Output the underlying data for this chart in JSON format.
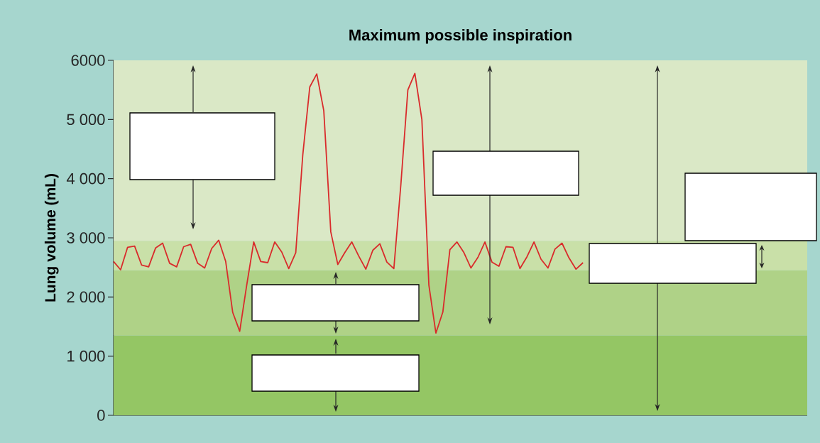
{
  "chart_data": {
    "type": "line",
    "title": "Maximum possible inspiration",
    "ylabel": "Lung volume (mL)",
    "categories": [
      null,
      null,
      null,
      null,
      null,
      null,
      null,
      null,
      null,
      null,
      null,
      null,
      null,
      null,
      null,
      null,
      null,
      null,
      null,
      null,
      null,
      null,
      null,
      null,
      null,
      null,
      null,
      null,
      null,
      null,
      null,
      null,
      null,
      null,
      null,
      null,
      null,
      null,
      null,
      null,
      null,
      null,
      null,
      null,
      null,
      null,
      null,
      null,
      null,
      null,
      null,
      null,
      null,
      null,
      null,
      null,
      null,
      null,
      null,
      null,
      null,
      null,
      null,
      null,
      null,
      null,
      null,
      null,
      null,
      null,
      null,
      null,
      null,
      null,
      null,
      null,
      null,
      null,
      null,
      null,
      null,
      null,
      null,
      null,
      null,
      null,
      null,
      null,
      null,
      null,
      null,
      null,
      null,
      null,
      null,
      null,
      null,
      null,
      null,
      null
    ],
    "series": [
      {
        "color": "#d92b2b",
        "values": [
          2600,
          2460,
          2840,
          2860,
          2540,
          2510,
          2830,
          2910,
          2570,
          2510,
          2850,
          2890,
          2570,
          2490,
          2820,
          2960,
          2600,
          1740,
          1420,
          2200,
          2930,
          2600,
          2580,
          2930,
          2760,
          2480,
          2750,
          4400,
          5550,
          5770,
          5150,
          3100,
          2550,
          2750,
          2930,
          2690,
          2470,
          2790,
          2900,
          2590,
          2480,
          3900,
          5500,
          5780,
          5000,
          2200,
          1390,
          1750,
          2800,
          2930,
          2750,
          2490,
          2670,
          2930,
          2590,
          2520,
          2850,
          2840,
          2480,
          2680,
          2930,
          2640,
          2490,
          2810,
          2910,
          2660,
          2470,
          2580,
          null,
          null,
          null,
          null,
          null,
          null,
          null,
          null,
          null,
          null,
          null,
          null,
          null,
          null,
          null,
          null,
          null,
          null,
          null,
          null,
          null,
          null,
          null,
          null,
          null,
          null,
          null,
          null,
          null,
          null,
          null,
          null
        ]
      }
    ],
    "ylim": [
      0,
      6000
    ],
    "yticks": [
      {
        "value": 0,
        "label": "0"
      },
      {
        "value": 1000,
        "label": "1 000"
      },
      {
        "value": 2000,
        "label": "2 000"
      },
      {
        "value": 3000,
        "label": "3 000"
      },
      {
        "value": 4000,
        "label": "4 000"
      },
      {
        "value": 5000,
        "label": "5 000"
      },
      {
        "value": 6000,
        "label": "6000"
      }
    ],
    "tick_labels": "y",
    "bands": [
      {
        "axis": "y",
        "from": 0,
        "to": 1350,
        "color": "#94c664"
      },
      {
        "axis": "y",
        "from": 1350,
        "to": 2450,
        "color": "#afd287"
      },
      {
        "axis": "y",
        "from": 2450,
        "to": 2950,
        "color": "#c9e0a8"
      },
      {
        "axis": "y",
        "from": 2950,
        "to": 6000,
        "color": "#dae8c6"
      }
    ]
  }
}
